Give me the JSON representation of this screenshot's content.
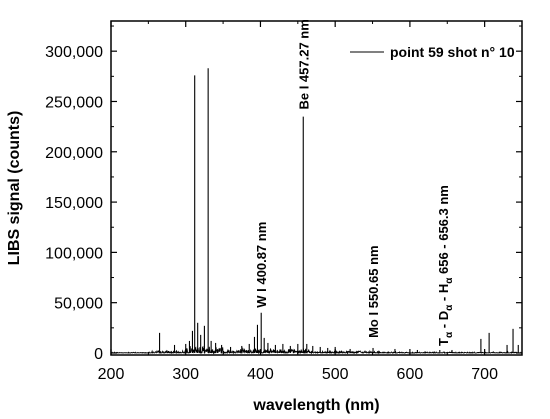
{
  "chart_data": {
    "type": "line",
    "xlabel": "wavelength (nm)",
    "ylabel": "LIBS signal (counts)",
    "xlim": [
      200,
      750
    ],
    "ylim": [
      -2000,
      330000
    ],
    "xticks": [
      200,
      300,
      400,
      500,
      600,
      700
    ],
    "xtick_labels": [
      "200",
      "300",
      "400",
      "500",
      "600",
      "700"
    ],
    "yticks": [
      0,
      50000,
      100000,
      150000,
      200000,
      250000,
      300000
    ],
    "ytick_labels": [
      "0",
      "50,000",
      "100,000",
      "150,000",
      "200,000",
      "250,000",
      "300,000"
    ],
    "legend": {
      "entries": [
        "point 59 shot n° 10"
      ],
      "placement": "top-right"
    },
    "grid": false,
    "series": [
      {
        "name": "point 59 shot n° 10",
        "color": "#000000",
        "peaks": [
          [
            265,
            20000
          ],
          [
            285,
            8000
          ],
          [
            300,
            9000
          ],
          [
            305,
            12000
          ],
          [
            309,
            22000
          ],
          [
            312,
            276000
          ],
          [
            316,
            30000
          ],
          [
            320,
            18000
          ],
          [
            325,
            27000
          ],
          [
            330,
            283000
          ],
          [
            334,
            12000
          ],
          [
            340,
            10000
          ],
          [
            348,
            8000
          ],
          [
            360,
            6000
          ],
          [
            375,
            7000
          ],
          [
            385,
            9000
          ],
          [
            392,
            16000
          ],
          [
            396,
            28000
          ],
          [
            401,
            40000
          ],
          [
            405,
            15000
          ],
          [
            410,
            10000
          ],
          [
            420,
            8000
          ],
          [
            430,
            9000
          ],
          [
            440,
            7000
          ],
          [
            450,
            9000
          ],
          [
            457.27,
            235000
          ],
          [
            462,
            9000
          ],
          [
            470,
            7000
          ],
          [
            480,
            6000
          ],
          [
            490,
            5000
          ],
          [
            500,
            6000
          ],
          [
            520,
            4000
          ],
          [
            550.65,
            5000
          ],
          [
            580,
            4000
          ],
          [
            610,
            3000
          ],
          [
            640,
            3000
          ],
          [
            656.3,
            3000
          ],
          [
            695,
            14000
          ],
          [
            706,
            20000
          ],
          [
            730,
            8000
          ],
          [
            738,
            24000
          ],
          [
            745,
            8000
          ]
        ]
      }
    ],
    "annotations": [
      {
        "text": "Be I 457.27 nm",
        "x": 457.27,
        "y": 242000
      },
      {
        "text": "W I 400.87 nm",
        "x": 400.87,
        "y": 45000
      },
      {
        "text": "Mo I 550.65 nm",
        "x": 550.65,
        "y": 15000
      }
    ],
    "annotation_complex": {
      "x": 656.3,
      "y": 5000,
      "parts": [
        {
          "text": "T",
          "sub": "α"
        },
        {
          "text": " - D",
          "sub": "α"
        },
        {
          "text": " - H",
          "sub": "α"
        },
        {
          "text": " 656 - 656.3 nm",
          "sub": ""
        }
      ]
    }
  }
}
